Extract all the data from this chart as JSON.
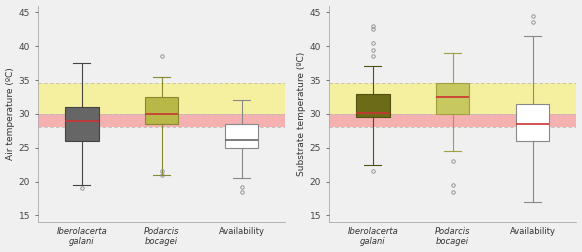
{
  "panel1": {
    "ylabel": "Air temperature (ºC)",
    "ylim": [
      14,
      46
    ],
    "yticks": [
      15,
      20,
      25,
      30,
      35,
      40,
      45
    ],
    "boxes": [
      {
        "label": "Iberolacerta\ngalani",
        "whislo": 19.5,
        "q1": 26.0,
        "median": 29.0,
        "q3": 31.0,
        "whishi": 37.5,
        "fliers": [
          19.0
        ],
        "facecolor": "#666666",
        "edgecolor": "#444444",
        "mediancolor": "#cc3333"
      },
      {
        "label": "Podarcis\nbocagei",
        "whislo": 21.0,
        "q1": 28.5,
        "median": 30.0,
        "q3": 32.5,
        "whishi": 35.5,
        "fliers": [
          38.5,
          21.0,
          21.5
        ],
        "facecolor": "#b8b848",
        "edgecolor": "#888830",
        "mediancolor": "#cc3333"
      },
      {
        "label": "Availability",
        "whislo": 20.5,
        "q1": 25.0,
        "median": 26.2,
        "q3": 28.5,
        "whishi": 32.0,
        "fliers": [
          19.2,
          18.5
        ],
        "facecolor": "#ffffff",
        "edgecolor": "#888888",
        "mediancolor": "#666666"
      }
    ],
    "band_yellow": [
      30.0,
      34.5
    ],
    "band_pink": [
      28.0,
      30.0
    ]
  },
  "panel2": {
    "ylabel": "Substrate temperature (ºC)",
    "ylim": [
      14,
      46
    ],
    "yticks": [
      15,
      20,
      25,
      30,
      35,
      40,
      45
    ],
    "boxes": [
      {
        "label": "Iberolacerta\ngalani",
        "whislo": 22.5,
        "q1": 29.5,
        "median": 30.2,
        "q3": 33.0,
        "whishi": 37.0,
        "fliers": [
          43.0,
          42.5,
          40.5,
          39.5,
          38.5,
          21.5
        ],
        "facecolor": "#6b6b18",
        "edgecolor": "#505010",
        "mediancolor": "#cc3333"
      },
      {
        "label": "Podarcis\nbocagei",
        "whislo": 24.5,
        "q1": 30.0,
        "median": 32.5,
        "q3": 34.5,
        "whishi": 39.0,
        "fliers": [
          23.0,
          19.5,
          18.5
        ],
        "facecolor": "#c8c860",
        "edgecolor": "#a0a040",
        "mediancolor": "#cc3333"
      },
      {
        "label": "Availability",
        "whislo": 17.0,
        "q1": 26.0,
        "median": 28.5,
        "q3": 31.5,
        "whishi": 41.5,
        "fliers": [
          44.5,
          43.5
        ],
        "facecolor": "#ffffff",
        "edgecolor": "#888888",
        "mediancolor": "#cc3333"
      }
    ],
    "band_yellow": [
      30.0,
      34.5
    ],
    "band_pink": [
      28.0,
      30.0
    ]
  },
  "background_color": "#f0f0f0",
  "band_yellow_color": "#f5f0a0",
  "band_pink_color": "#f5b0b0",
  "band_line_color": "#bbbbbb",
  "fig_width": 5.82,
  "fig_height": 2.52,
  "dpi": 100
}
